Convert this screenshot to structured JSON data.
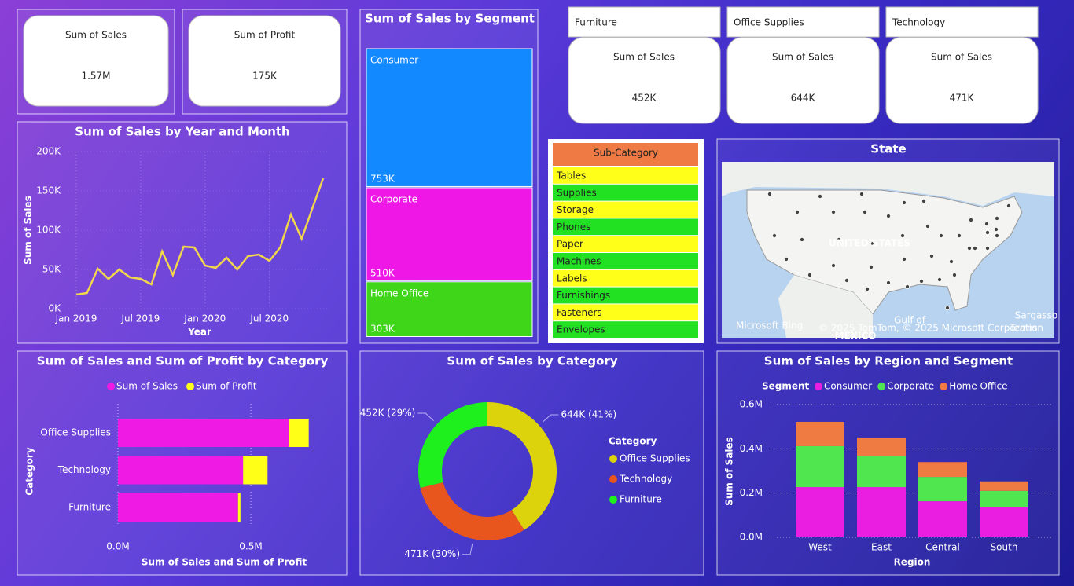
{
  "cards": [
    {
      "label": "Sum of Sales",
      "value": "1.57M"
    },
    {
      "label": "Sum of Profit",
      "value": "175K"
    }
  ],
  "category_cards": [
    {
      "title": "Furniture",
      "label": "Sum of Sales",
      "value": "452K"
    },
    {
      "title": "Office Supplies",
      "label": "Sum of Sales",
      "value": "644K"
    },
    {
      "title": "Technology",
      "label": "Sum of Sales",
      "value": "471K"
    }
  ],
  "slicer": {
    "title": "Sub-Category",
    "items": [
      "Tables",
      "Supplies",
      "Storage",
      "Phones",
      "Paper",
      "Machines",
      "Labels",
      "Furnishings",
      "Fasteners",
      "Envelopes"
    ]
  },
  "map": {
    "title": "State",
    "labels": [
      "UNITED STATES",
      "Gulf of",
      "MEXICO",
      "Sargasso",
      "Microsoft Bing",
      "© 2025 TomTom, © 2025 Microsoft Corporation",
      "Terms"
    ]
  },
  "chart_data": [
    {
      "type": "line",
      "title": "Sum of Sales by Year and Month",
      "x_label": "Year",
      "y_label": "Sum of Sales",
      "color": "#f2d64b",
      "categories": [
        "Jan 2019",
        null,
        null,
        null,
        null,
        null,
        "Jul 2019",
        null,
        null,
        null,
        null,
        null,
        "Jan 2020",
        null,
        null,
        null,
        null,
        null,
        "Jul 2020",
        null,
        null,
        null,
        null,
        null
      ],
      "values": [
        18000,
        20000,
        51000,
        38000,
        50000,
        40000,
        38000,
        31000,
        73000,
        43000,
        79000,
        78000,
        55000,
        52000,
        65000,
        50000,
        67000,
        69000,
        61000,
        78000,
        120000,
        89000,
        128000,
        166000
      ],
      "ylim": [
        0,
        200000
      ],
      "yticks": [
        {
          "value": 0,
          "label": "0K"
        },
        {
          "value": 50000,
          "label": "50K"
        },
        {
          "value": 100000,
          "label": "100K"
        },
        {
          "value": 150000,
          "label": "150K"
        },
        {
          "value": 200000,
          "label": "200K"
        }
      ],
      "grid": true
    },
    {
      "type": "treemap",
      "title": "Sum of Sales by Segment",
      "categories": [
        "Consumer",
        "Corporate",
        "Home Office"
      ],
      "values": [
        753000,
        510000,
        303000
      ],
      "value_labels": [
        "753K",
        "510K",
        "303K"
      ],
      "colors": [
        "#1289fe",
        "#ee17e6",
        "#3fd61a"
      ]
    },
    {
      "type": "hbar_stacked",
      "title": "Sum of Sales and Sum of Profit by Category",
      "x_label": "Sum of Sales and Sum of Profit",
      "y_label": "Category",
      "categories": [
        "Office Supplies",
        "Technology",
        "Furniture"
      ],
      "series": [
        {
          "name": "Sum of Sales",
          "color": "#ef1ae3",
          "values": [
            0.644,
            0.471,
            0.452
          ]
        },
        {
          "name": "Sum of Profit",
          "color": "#ffff18",
          "values": [
            0.074,
            0.092,
            0.009
          ]
        }
      ],
      "xlim": [
        0,
        0.75
      ],
      "xticks": [
        {
          "value": 0,
          "label": "0.0M"
        },
        {
          "value": 0.5,
          "label": "0.5M"
        }
      ],
      "grid": true
    },
    {
      "type": "donut",
      "title": "Sum of Sales by Category",
      "legend_title": "Category",
      "categories": [
        "Office Supplies",
        "Technology",
        "Furniture"
      ],
      "values": [
        644000,
        471000,
        452000
      ],
      "value_labels": [
        "644K (41%)",
        "471K (30%)",
        "452K (29%)"
      ],
      "colors": [
        "#dcd30c",
        "#e9561d",
        "#1ef01e"
      ]
    },
    {
      "type": "column_stacked",
      "title": "Sum of Sales by Region and Segment",
      "legend_title": "Segment",
      "x_label": "Region",
      "y_label": "Sum of Sales",
      "categories": [
        "West",
        "East",
        "Central",
        "South"
      ],
      "series": [
        {
          "name": "Consumer",
          "color": "#e91ee0",
          "values": [
            0.227,
            0.227,
            0.163,
            0.135
          ]
        },
        {
          "name": "Corporate",
          "color": "#4fe64f",
          "values": [
            0.185,
            0.142,
            0.11,
            0.075
          ]
        },
        {
          "name": "Home Office",
          "color": "#ef7b43",
          "values": [
            0.11,
            0.082,
            0.067,
            0.043
          ]
        }
      ],
      "ylim": [
        0,
        0.6
      ],
      "yticks": [
        {
          "value": 0,
          "label": "0.0M"
        },
        {
          "value": 0.2,
          "label": "0.2M"
        },
        {
          "value": 0.4,
          "label": "0.4M"
        },
        {
          "value": 0.6,
          "label": "0.6M"
        }
      ],
      "grid": true
    }
  ]
}
